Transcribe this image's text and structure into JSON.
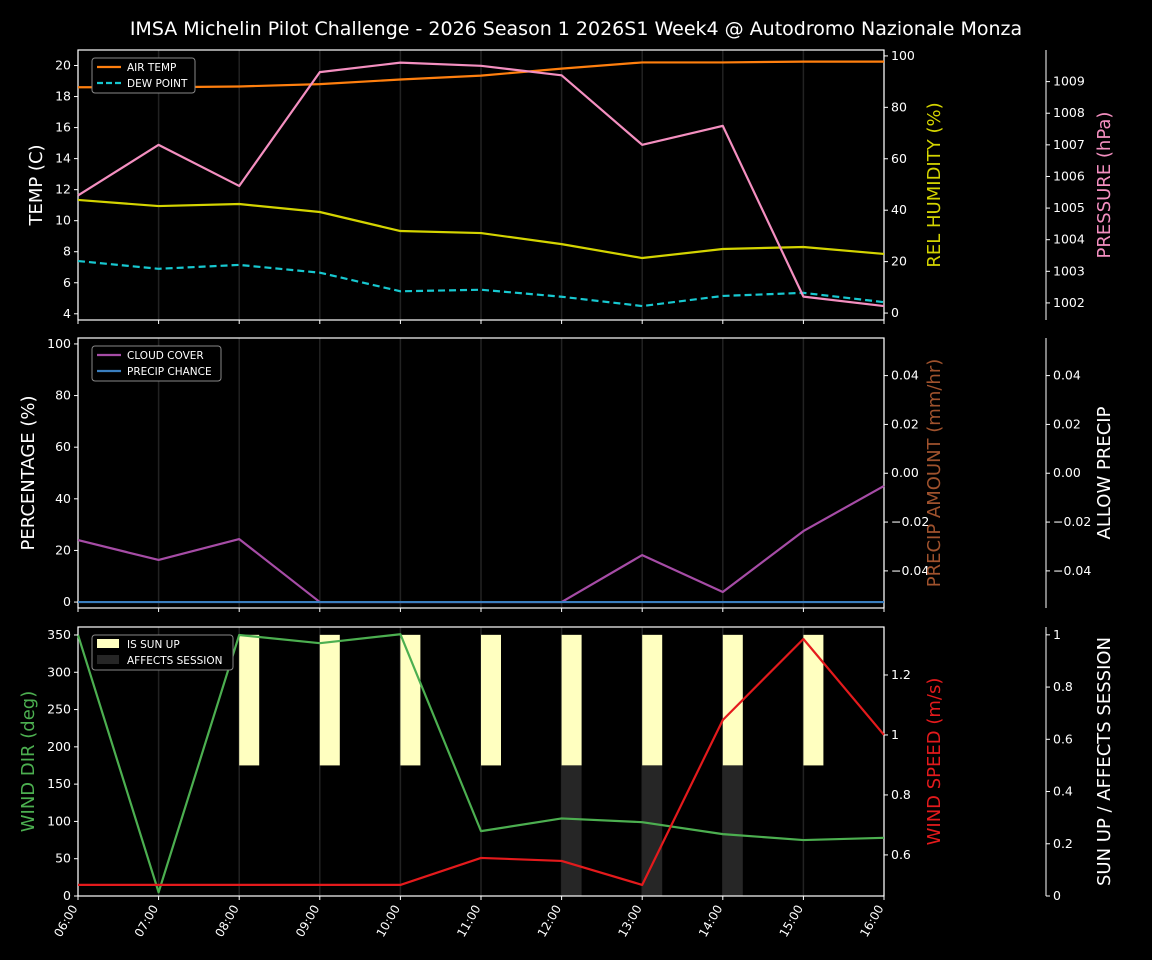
{
  "title": "IMSA Michelin Pilot Challenge - 2026 Season 1 2026S1 Week4 @ Autodromo Nazionale Monza",
  "chart_data": [
    {
      "type": "line",
      "x": [
        "06:00",
        "07:00",
        "08:00",
        "09:00",
        "10:00",
        "11:00",
        "12:00",
        "13:00",
        "14:00",
        "15:00",
        "16:00"
      ],
      "axes": {
        "left": {
          "label": "TEMP (C)",
          "ylim": [
            3.6,
            21.0
          ],
          "ticks": [
            4,
            6,
            8,
            10,
            12,
            14,
            16,
            18,
            20
          ],
          "color": "#ffffff"
        },
        "right": {
          "label": "REL HUMIDITY (%)",
          "ylim": [
            -2.7,
            102.3
          ],
          "ticks": [
            0,
            20,
            40,
            60,
            80,
            100
          ],
          "color": "#d4d400"
        },
        "right2": {
          "label": "PRESSURE (hPa)",
          "ylim": [
            1001.46,
            1010.0
          ],
          "ticks": [
            1002,
            1003,
            1004,
            1005,
            1006,
            1007,
            1008,
            1009
          ],
          "color": "#f48fc0"
        }
      },
      "series": [
        {
          "name": "AIR TEMP",
          "axis": "left",
          "color": "#ff7f0e",
          "dash": false,
          "legend": true,
          "values": [
            18.6,
            18.6,
            18.65,
            18.8,
            19.1,
            19.35,
            19.8,
            20.2,
            20.2,
            20.25,
            20.25
          ]
        },
        {
          "name": "DEW POINT",
          "axis": "left",
          "color": "#17c8d0",
          "dash": true,
          "legend": true,
          "values": [
            7.4,
            6.9,
            7.15,
            6.65,
            5.45,
            5.55,
            5.1,
            4.5,
            5.15,
            5.35,
            4.75
          ]
        },
        {
          "name": "REL HUMIDITY",
          "axis": "right",
          "color": "#d4d400",
          "dash": false,
          "legend": false,
          "values": [
            44,
            41.6,
            42.4,
            39.3,
            31.9,
            31.1,
            26.8,
            21.4,
            24.9,
            25.7,
            23
          ]
        },
        {
          "name": "PRESSURE",
          "axis": "right2",
          "color": "#f48fc0",
          "dash": false,
          "legend": false,
          "values": [
            1005.4,
            1007.0,
            1005.7,
            1009.3,
            1009.6,
            1009.5,
            1009.2,
            1007.0,
            1007.6,
            1002.2,
            1001.9
          ]
        }
      ]
    },
    {
      "type": "line",
      "x": [
        "06:00",
        "07:00",
        "08:00",
        "09:00",
        "10:00",
        "11:00",
        "12:00",
        "13:00",
        "14:00",
        "15:00",
        "16:00"
      ],
      "axes": {
        "left": {
          "label": "PERCENTAGE (%)",
          "ylim": [
            -2.3,
            102.3
          ],
          "ticks": [
            0,
            20,
            40,
            60,
            80,
            100
          ],
          "color": "#ffffff"
        },
        "right": {
          "label": "PRECIP AMOUNT (mm/hr)",
          "ylim": [
            -0.0552,
            0.0554
          ],
          "ticks": [
            -0.04,
            -0.02,
            0.0,
            0.02,
            0.04
          ],
          "tick_labels": [
            "−0.04",
            "−0.02",
            "0.00",
            "0.02",
            "0.04"
          ],
          "color": "#a0522d"
        },
        "right2": {
          "label": "ALLOW PRECIP",
          "ylim": [
            -0.0552,
            0.0554
          ],
          "ticks": [
            -0.04,
            -0.02,
            0.0,
            0.02,
            0.04
          ],
          "tick_labels": [
            "−0.04",
            "−0.02",
            "0.00",
            "0.02",
            "0.04"
          ],
          "color": "#ffffff"
        }
      },
      "series": [
        {
          "name": "CLOUD COVER",
          "axis": "left",
          "color": "#a64ca6",
          "dash": false,
          "legend": true,
          "values": [
            24,
            16.3,
            24.4,
            0,
            0,
            0,
            0,
            18.2,
            3.9,
            27.5,
            45
          ]
        },
        {
          "name": "PRECIP CHANCE",
          "axis": "left",
          "color": "#3a7ebf",
          "dash": false,
          "legend": true,
          "values": [
            0,
            0,
            0,
            0,
            0,
            0,
            0,
            0,
            0,
            0,
            0
          ]
        }
      ]
    },
    {
      "type": "line",
      "x": [
        "06:00",
        "07:00",
        "08:00",
        "09:00",
        "10:00",
        "11:00",
        "12:00",
        "13:00",
        "14:00",
        "15:00",
        "16:00"
      ],
      "axes": {
        "left": {
          "label": "WIND DIR (deg)",
          "ylim": [
            0,
            360.7
          ],
          "ticks": [
            0,
            50,
            100,
            150,
            200,
            250,
            300,
            350
          ],
          "color": "#4caf50"
        },
        "right": {
          "label": "WIND SPEED (m/s)",
          "ylim": [
            0.463,
            1.36
          ],
          "ticks": [
            0.6,
            0.8,
            1.0,
            1.2
          ],
          "color": "#e41a1c"
        },
        "right2": {
          "label": "SUN UP / AFFECTS SESSION",
          "ylim": [
            0,
            1.03
          ],
          "ticks": [
            0.0,
            0.2,
            0.4,
            0.6,
            0.8,
            1.0
          ],
          "color": "#ffffff"
        }
      },
      "bars": [
        {
          "name": "IS SUN UP",
          "color": "#ffffc0",
          "range": [
            0.5,
            1.0
          ],
          "values": [
            0,
            0,
            1,
            1,
            1,
            1,
            1,
            1,
            1,
            1,
            0
          ]
        },
        {
          "name": "AFFECTS SESSION",
          "color": "#262626",
          "range": [
            0.0,
            0.5
          ],
          "values": [
            0,
            0,
            0,
            0,
            0,
            0,
            1,
            1,
            1,
            0,
            0
          ]
        }
      ],
      "series": [
        {
          "name": "WIND DIR",
          "axis": "left",
          "color": "#4caf50",
          "dash": false,
          "legend": false,
          "values": [
            350,
            5,
            350,
            339,
            351,
            87,
            104,
            99,
            83,
            75,
            78
          ]
        },
        {
          "name": "WIND SPEED",
          "axis": "right",
          "color": "#e41a1c",
          "dash": false,
          "legend": false,
          "values": [
            0.5,
            0.5,
            0.5,
            0.5,
            0.5,
            0.59,
            0.58,
            0.5,
            1.05,
            1.32,
            1.0
          ]
        }
      ]
    }
  ]
}
